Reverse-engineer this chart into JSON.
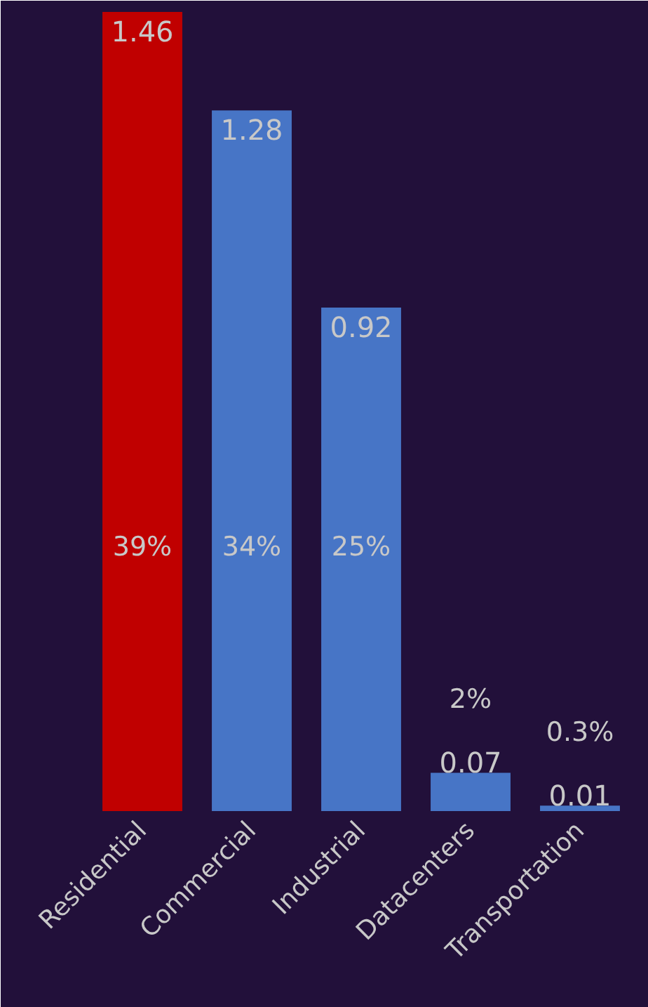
{
  "chart_data": {
    "type": "bar",
    "categories": [
      "Residential",
      "Commercial",
      "Industrial",
      "Datacenters",
      "Transportation"
    ],
    "values": [
      1.46,
      1.28,
      0.92,
      0.07,
      0.01
    ],
    "colors": [
      "#c00000",
      "#4775c6",
      "#4775c6",
      "#4775c6",
      "#4775c6"
    ],
    "data_labels": true,
    "grid": false,
    "annotations": [
      "39%",
      "34%",
      "25%",
      "2%",
      "0.3%"
    ]
  }
}
